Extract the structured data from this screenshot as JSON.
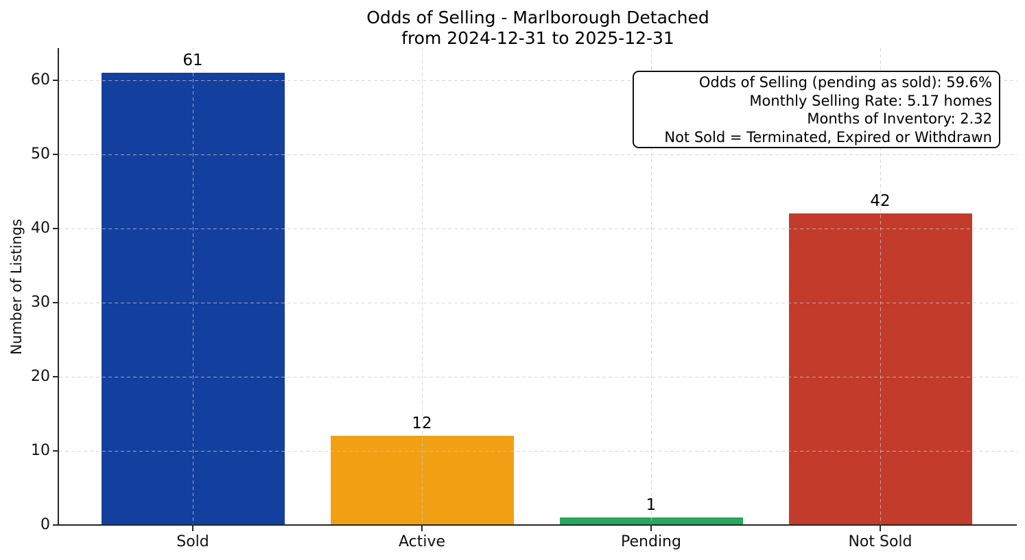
{
  "figure": {
    "kind": "matplotlib-style bar chart figure"
  },
  "chart_data": {
    "type": "bar",
    "title": "Odds of Selling - Marlborough Detached",
    "subtitle": "from 2024-12-31 to 2025-12-31",
    "categories": [
      "Sold",
      "Active",
      "Pending",
      "Not Sold"
    ],
    "values": [
      61,
      12,
      1,
      42
    ],
    "bar_colors": [
      "#133f9e",
      "#f2a013",
      "#28a85c",
      "#c23b2b"
    ],
    "xlabel": "",
    "ylabel": "Number of Listings",
    "ylim": [
      0,
      64
    ],
    "yticks": [
      0,
      10,
      20,
      30,
      40,
      50,
      60
    ],
    "grid": {
      "style": "dashed",
      "horizontal": true,
      "vertical": true,
      "color": "#c8c8c8"
    },
    "legend_position": "none",
    "annotation": {
      "position": "top-right",
      "align": "right",
      "lines": [
        "Odds of Selling (pending as sold): 59.6%",
        "Monthly Selling Rate: 5.17 homes",
        "Months of Inventory: 2.32",
        "Not Sold = Terminated, Expired or Withdrawn"
      ]
    },
    "axis_color": "#262626",
    "background_color": "#ffffff"
  }
}
